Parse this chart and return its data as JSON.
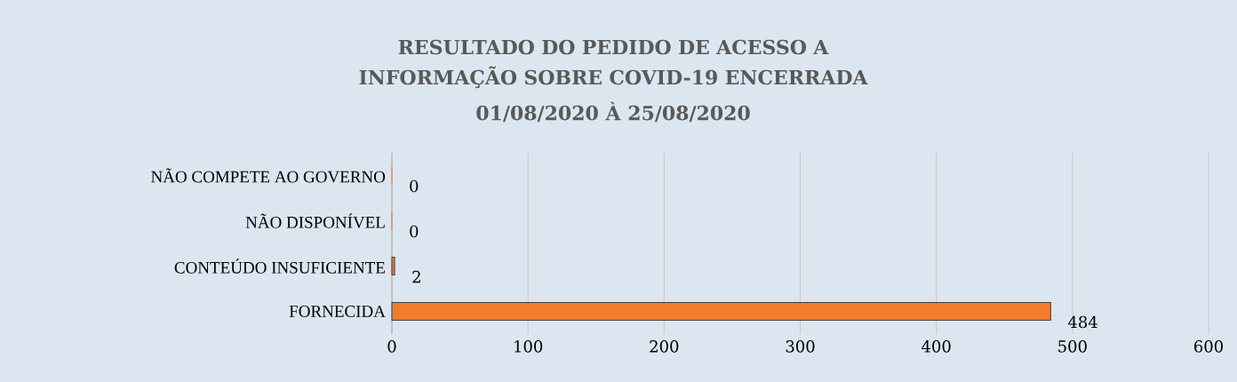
{
  "chart_data": {
    "type": "bar",
    "orientation": "horizontal",
    "title": "RESULTADO DO PEDIDO DE ACESSO A INFORMAÇÃO SOBRE COVID-19  ENCERRADA",
    "subtitle": "01/08/2020 À 25/08/2020",
    "categories": [
      "NÃO COMPETE AO GOVERNO",
      "NÃO DISPONÍVEL",
      "CONTEÚDO INSUFICIENTE",
      "FORNECIDA"
    ],
    "values": [
      0,
      0,
      2,
      484
    ],
    "color": "#f07c2c",
    "xlim": [
      0,
      600
    ],
    "xticks": [
      0,
      100,
      200,
      300,
      400,
      500,
      600
    ],
    "grid": "x",
    "data_labels": true
  }
}
